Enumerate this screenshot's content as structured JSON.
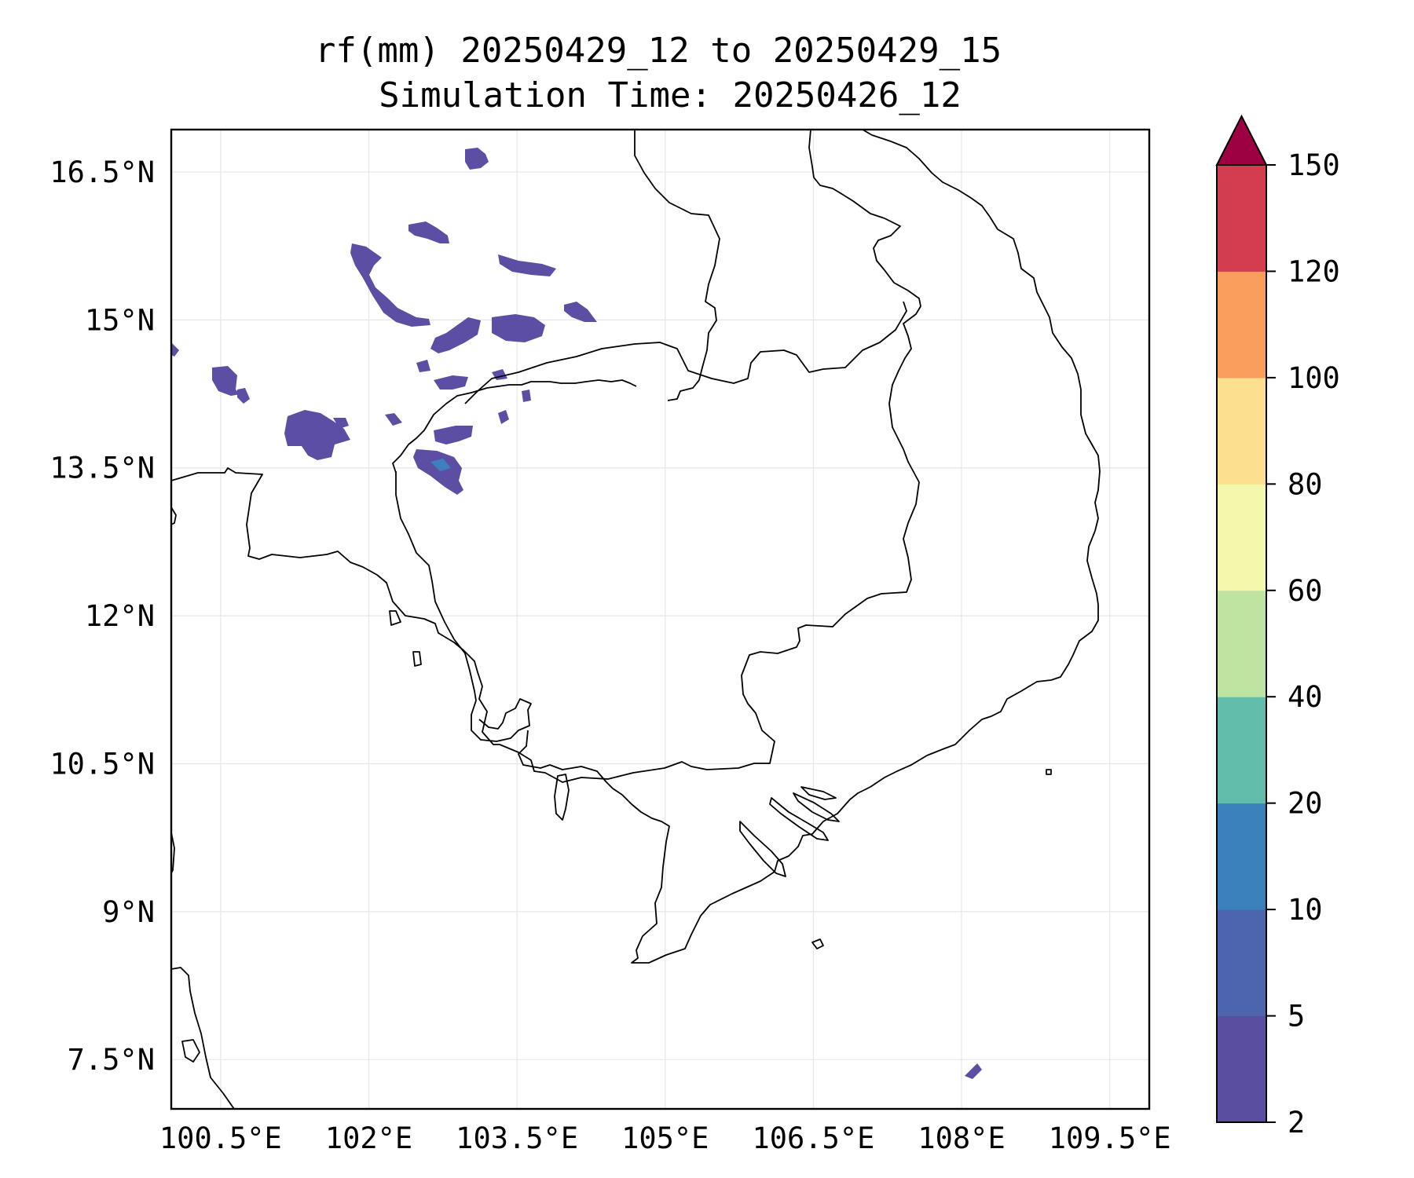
{
  "figure": {
    "title_line1": "rf(mm) 20250429_12 to 20250429_15",
    "title_line2": "Simulation Time: 20250426_12"
  },
  "map": {
    "extent": {
      "lon": [
        100.0,
        109.9
      ],
      "lat": [
        7.0,
        16.93
      ]
    },
    "lat_ticks": [
      {
        "value": 16.5,
        "label": "16.5°N"
      },
      {
        "value": 15.0,
        "label": "15°N"
      },
      {
        "value": 13.5,
        "label": "13.5°N"
      },
      {
        "value": 12.0,
        "label": "12°N"
      },
      {
        "value": 10.5,
        "label": "10.5°N"
      },
      {
        "value": 9.0,
        "label": "9°N"
      },
      {
        "value": 7.5,
        "label": "7.5°N"
      }
    ],
    "lon_ticks": [
      {
        "value": 100.5,
        "label": "100.5°E"
      },
      {
        "value": 102.0,
        "label": "102°E"
      },
      {
        "value": 103.5,
        "label": "103.5°E"
      },
      {
        "value": 105.0,
        "label": "105°E"
      },
      {
        "value": 106.5,
        "label": "106.5°E"
      },
      {
        "value": 108.0,
        "label": "108°E"
      },
      {
        "value": 109.5,
        "label": "109.5°E"
      }
    ],
    "rain_color": "#5c4fa3",
    "rain_color_mid": "#3f7fbf",
    "border_color": "#000000",
    "grid_color": "#e6e6e6"
  },
  "colorbar": {
    "levels": [
      {
        "label": "2"
      },
      {
        "label": "5"
      },
      {
        "label": "10"
      },
      {
        "label": "20"
      },
      {
        "label": "40"
      },
      {
        "label": "60"
      },
      {
        "label": "80"
      },
      {
        "label": "100"
      },
      {
        "label": "120"
      },
      {
        "label": "150"
      }
    ],
    "colors": [
      "#5a4ea1",
      "#4c65ad",
      "#3a80ba",
      "#62bcaa",
      "#bfe3a0",
      "#f3f8ad",
      "#fbdf8e",
      "#f89d5b",
      "#d43d4f"
    ],
    "extend_color": "#9e0142"
  }
}
